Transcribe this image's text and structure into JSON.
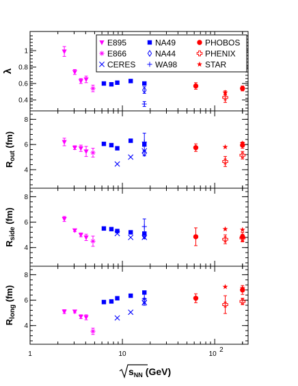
{
  "chart_data": {
    "type": "scatter",
    "x_scale": "log",
    "xlim": [
      1,
      230
    ],
    "x_ticks": [
      {
        "value": 1,
        "label": "1"
      },
      {
        "value": 10,
        "label": "10"
      },
      {
        "value": 100,
        "label": "10",
        "exponent": "2"
      }
    ],
    "xlabel": {
      "root": "s",
      "subscript": "NN",
      "unit": "(GeV)"
    },
    "legend": {
      "placement": "top-right of top panel",
      "entries": [
        {
          "series": "E895",
          "label": "E895"
        },
        {
          "series": "NA49",
          "label": "NA49"
        },
        {
          "series": "PHOBOS",
          "label": "PHOBOS"
        },
        {
          "series": "E866",
          "label": "E866"
        },
        {
          "series": "NA44",
          "label": "NA44"
        },
        {
          "series": "PHENIX",
          "label": "PHENIX"
        },
        {
          "series": "CERES",
          "label": "CERES"
        },
        {
          "series": "WA98",
          "label": "WA98"
        },
        {
          "series": "STAR",
          "label": "STAR"
        }
      ]
    },
    "series_styles": {
      "E895": {
        "color": "#ff00ff",
        "marker": "triangle-down-filled"
      },
      "E866": {
        "color": "#ff00ff",
        "marker": "asterisk"
      },
      "CERES": {
        "color": "#0000ff",
        "marker": "x-cross"
      },
      "NA49": {
        "color": "#0000ff",
        "marker": "square-filled"
      },
      "NA44": {
        "color": "#0000ff",
        "marker": "diamond-open"
      },
      "WA98": {
        "color": "#0000ff",
        "marker": "plus"
      },
      "PHOBOS": {
        "color": "#ff0000",
        "marker": "circle-filled"
      },
      "PHENIX": {
        "color": "#ff0000",
        "marker": "cross-open"
      },
      "STAR": {
        "color": "#ff0000",
        "marker": "star-filled"
      }
    },
    "panels": [
      {
        "ylabel": {
          "main": "λ",
          "sub": ""
        },
        "ylim": [
          0.3,
          1.2
        ],
        "yticks": [
          0.4,
          0.6,
          0.8,
          1.0
        ],
        "ytick_labels": [
          "0.4",
          "0.6",
          "0.8",
          "1"
        ],
        "series": [
          {
            "name": "E895",
            "points": [
              [
                2.35,
                0.99,
                0.06
              ],
              [
                3.05,
                0.74,
                0.03
              ],
              [
                3.55,
                0.63,
                0.03
              ],
              [
                4.05,
                0.65,
                0.04
              ]
            ]
          },
          {
            "name": "E866",
            "points": [
              [
                4.8,
                0.54,
                0.04
              ]
            ]
          },
          {
            "name": "NA49",
            "points": [
              [
                6.3,
                0.6,
                0
              ],
              [
                7.6,
                0.59,
                0
              ],
              [
                8.8,
                0.61,
                0
              ],
              [
                12.3,
                0.63,
                0
              ],
              [
                17.3,
                0.6,
                0
              ]
            ]
          },
          {
            "name": "NA44",
            "points": [
              [
                17.3,
                0.52,
                0.04
              ]
            ]
          },
          {
            "name": "WA98",
            "points": [
              [
                17.3,
                0.35,
                0.03
              ]
            ]
          },
          {
            "name": "PHOBOS",
            "points": [
              [
                62.4,
                0.57,
                0.04
              ],
              [
                200,
                0.54,
                0.03
              ]
            ]
          },
          {
            "name": "PHENIX",
            "points": [
              [
                130,
                0.43,
                0.06
              ]
            ]
          },
          {
            "name": "STAR",
            "points": [
              [
                130,
                0.49,
                0.02
              ]
            ]
          }
        ]
      },
      {
        "ylabel": {
          "main": "R",
          "sub": "out",
          "unit": " (fm)"
        },
        "ylim": [
          2.8,
          8.4
        ],
        "yticks": [
          4,
          6,
          8
        ],
        "ytick_labels": [
          "4",
          "6",
          "8"
        ],
        "series": [
          {
            "name": "E895",
            "points": [
              [
                2.35,
                6.2,
                0.3
              ],
              [
                3.05,
                5.75,
                0.15
              ],
              [
                3.55,
                5.7,
                0.25
              ],
              [
                4.05,
                5.45,
                0.4
              ]
            ]
          },
          {
            "name": "E866",
            "points": [
              [
                4.8,
                5.35,
                0.35
              ]
            ]
          },
          {
            "name": "CERES",
            "points": [
              [
                8.8,
                4.45,
                0
              ],
              [
                12.3,
                5.0,
                0
              ],
              [
                17.3,
                5.5,
                0
              ]
            ]
          },
          {
            "name": "NA49",
            "points": [
              [
                6.3,
                6.05,
                0
              ],
              [
                7.6,
                5.95,
                0
              ],
              [
                8.8,
                5.7,
                0
              ],
              [
                12.3,
                6.3,
                0
              ],
              [
                17.3,
                6.0,
                0
              ]
            ]
          },
          {
            "name": "NA44",
            "points": [
              [
                17.3,
                5.3,
                0.2
              ]
            ]
          },
          {
            "name": "WA98",
            "points": [
              [
                17.3,
                6.2,
                0.7
              ]
            ]
          },
          {
            "name": "PHOBOS",
            "points": [
              [
                62.4,
                5.75,
                0.3
              ],
              [
                200,
                5.95,
                0.25
              ]
            ]
          },
          {
            "name": "PHENIX",
            "points": [
              [
                130,
                4.65,
                0.4
              ],
              [
                200,
                5.15,
                0.3
              ]
            ]
          },
          {
            "name": "STAR",
            "points": [
              [
                130,
                5.8,
                0
              ],
              [
                200,
                6.1,
                0
              ]
            ]
          }
        ]
      },
      {
        "ylabel": {
          "main": "R",
          "sub": "side",
          "unit": " (fm)"
        },
        "ylim": [
          2.8,
          8.4
        ],
        "yticks": [
          4,
          6,
          8
        ],
        "ytick_labels": [
          "4",
          "6",
          "8"
        ],
        "series": [
          {
            "name": "E895",
            "points": [
              [
                2.35,
                6.25,
                0.2
              ],
              [
                3.05,
                5.35,
                0.1
              ],
              [
                3.55,
                5.0,
                0.15
              ],
              [
                4.05,
                4.8,
                0.25
              ]
            ]
          },
          {
            "name": "E866",
            "points": [
              [
                4.8,
                4.5,
                0.4
              ]
            ]
          },
          {
            "name": "CERES",
            "points": [
              [
                8.8,
                5.1,
                0
              ],
              [
                12.3,
                4.8,
                0
              ],
              [
                17.3,
                4.8,
                0
              ]
            ]
          },
          {
            "name": "NA49",
            "points": [
              [
                6.3,
                5.5,
                0
              ],
              [
                7.6,
                5.45,
                0
              ],
              [
                8.8,
                5.3,
                0
              ],
              [
                12.3,
                5.2,
                0
              ],
              [
                17.3,
                5.1,
                0
              ]
            ]
          },
          {
            "name": "NA44",
            "points": [
              [
                17.3,
                4.9,
                0.2
              ]
            ]
          },
          {
            "name": "WA98",
            "points": [
              [
                17.3,
                5.65,
                0.6
              ]
            ]
          },
          {
            "name": "PHOBOS",
            "points": [
              [
                62.4,
                4.85,
                0.7
              ],
              [
                200,
                4.85,
                0.35
              ]
            ]
          },
          {
            "name": "PHENIX",
            "points": [
              [
                130,
                4.65,
                0.35
              ],
              [
                200,
                4.75,
                0.3
              ]
            ]
          },
          {
            "name": "STAR",
            "points": [
              [
                130,
                5.45,
                0
              ],
              [
                200,
                5.4,
                0
              ]
            ]
          }
        ]
      },
      {
        "ylabel": {
          "main": "R",
          "sub": "long",
          "unit": " (fm)"
        },
        "ylim": [
          2.8,
          8.4
        ],
        "yticks": [
          4,
          6,
          8
        ],
        "ytick_labels": [
          "4",
          "6",
          "8"
        ],
        "series": [
          {
            "name": "E895",
            "points": [
              [
                2.35,
                5.1,
                0.15
              ],
              [
                3.05,
                5.1,
                0.1
              ],
              [
                3.55,
                4.7,
                0.15
              ],
              [
                4.05,
                4.65,
                0.2
              ]
            ]
          },
          {
            "name": "E866",
            "points": [
              [
                4.8,
                3.55,
                0.25
              ]
            ]
          },
          {
            "name": "CERES",
            "points": [
              [
                8.8,
                4.6,
                0
              ],
              [
                12.3,
                5.05,
                0
              ],
              [
                17.3,
                5.8,
                0
              ]
            ]
          },
          {
            "name": "NA49",
            "points": [
              [
                6.3,
                5.85,
                0
              ],
              [
                7.6,
                5.9,
                0
              ],
              [
                8.8,
                6.15,
                0
              ],
              [
                12.3,
                6.35,
                0
              ],
              [
                17.3,
                6.6,
                0
              ]
            ]
          },
          {
            "name": "NA44",
            "points": [
              [
                17.3,
                5.95,
                0.2
              ]
            ]
          },
          {
            "name": "WA98",
            "points": [
              [
                17.3,
                6.1,
                0.5
              ]
            ]
          },
          {
            "name": "PHOBOS",
            "points": [
              [
                62.4,
                6.15,
                0.35
              ],
              [
                200,
                6.8,
                0.35
              ]
            ]
          },
          {
            "name": "PHENIX",
            "points": [
              [
                130,
                5.65,
                0.7
              ],
              [
                200,
                5.9,
                0.25
              ]
            ]
          },
          {
            "name": "STAR",
            "points": [
              [
                130,
                7.05,
                0
              ],
              [
                200,
                6.95,
                0
              ]
            ]
          }
        ]
      }
    ]
  }
}
